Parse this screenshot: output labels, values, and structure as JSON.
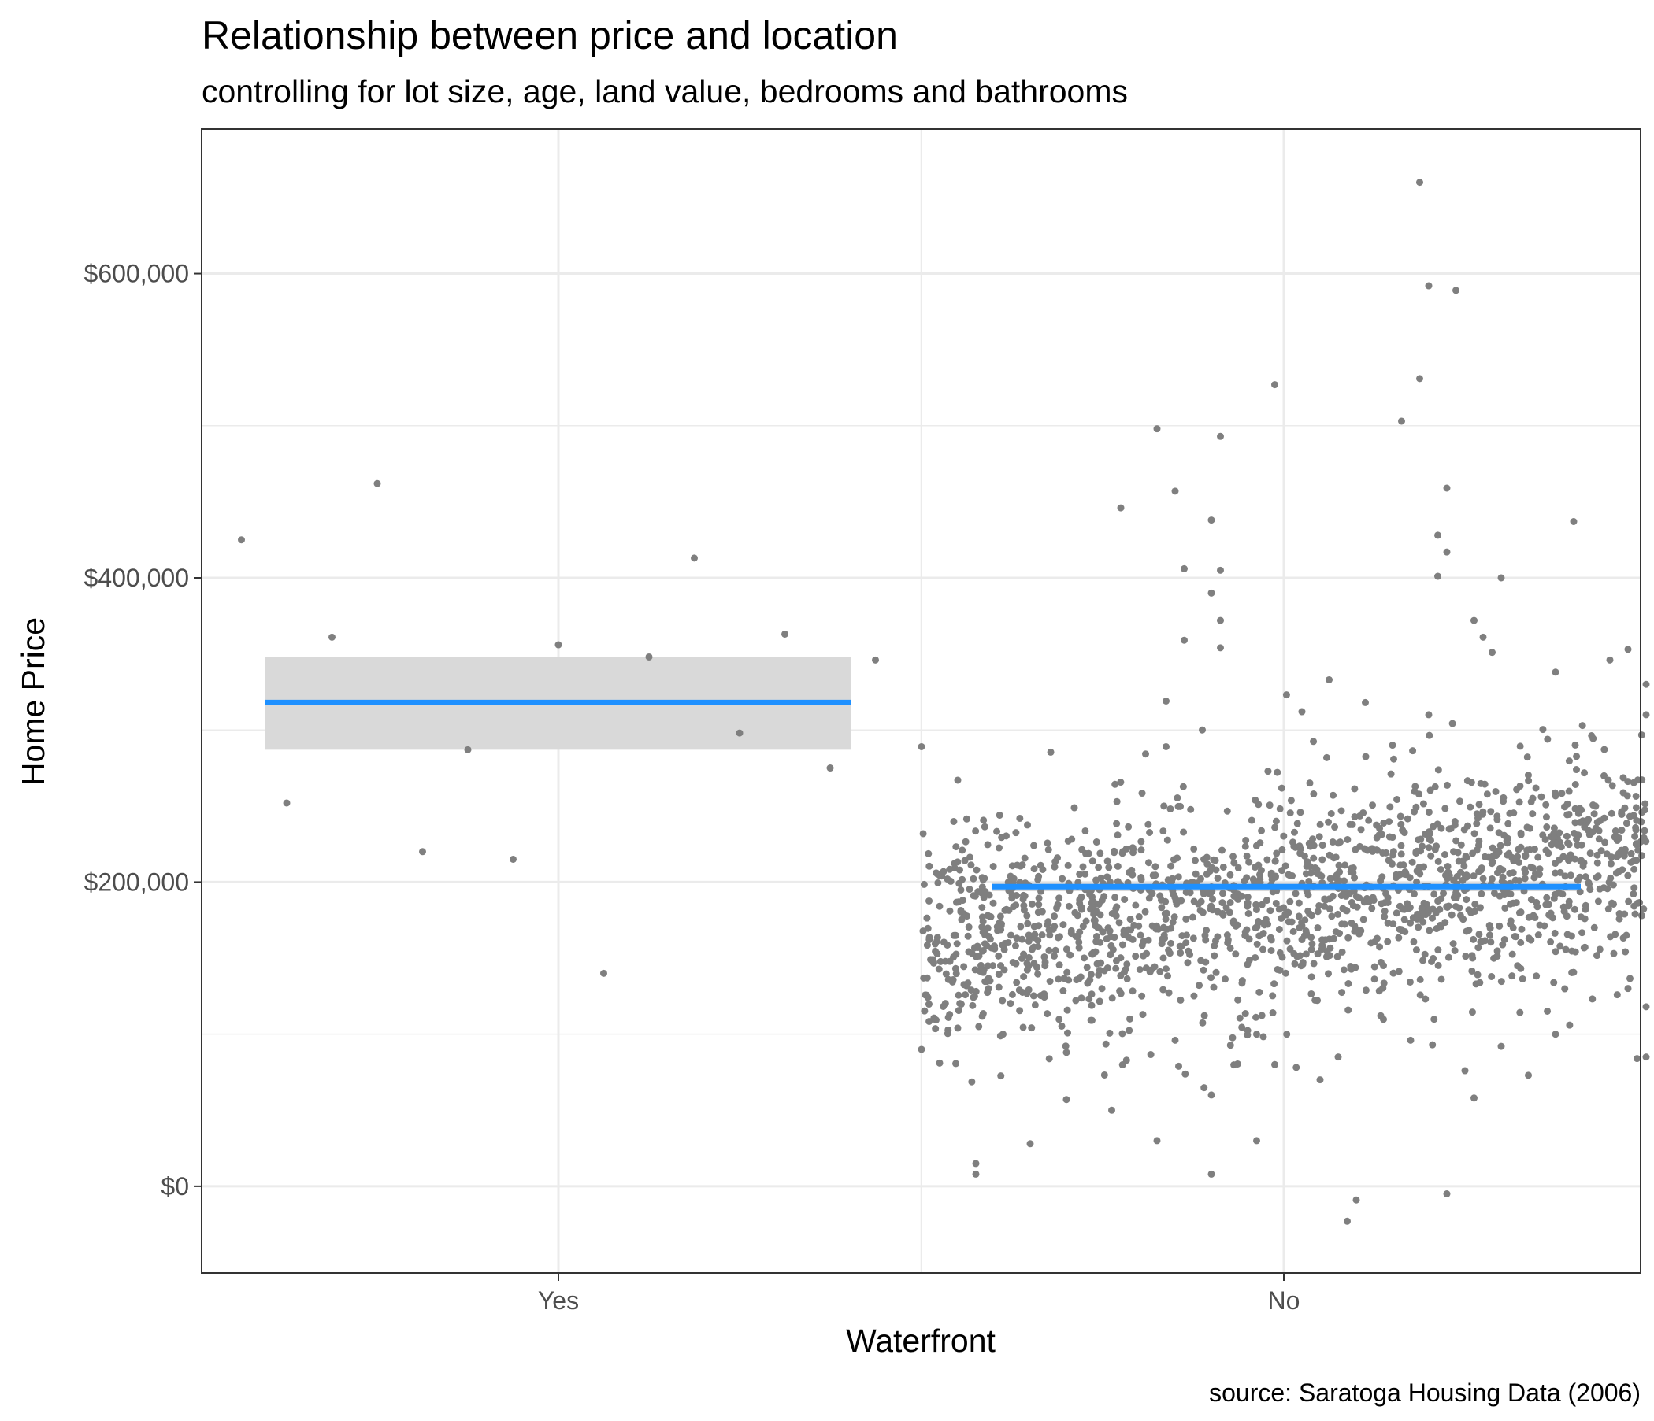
{
  "chart_data": {
    "type": "scatter",
    "title": "Relationship between price and location",
    "subtitle": "controlling for lot size, age, land value, bedrooms and bathrooms",
    "xlabel": "Waterfront",
    "ylabel": "Home Price",
    "caption": "source: Saratoga Housing Data (2006)",
    "categories": [
      "Yes",
      "No"
    ],
    "ylim": [
      -57000,
      695000
    ],
    "y_ticks": [
      0,
      200000,
      400000,
      600000
    ],
    "y_tick_labels": [
      "$0",
      "$200,000",
      "$400,000",
      "$600,000"
    ],
    "grid": true,
    "colors": {
      "points": "#7f7f7f",
      "fit_line": "#1e90ff",
      "ci_band": "#d9d9d9",
      "grid": "#ebebeb",
      "panel_border": "#333333"
    },
    "fits": [
      {
        "category": "Yes",
        "mean": 318000,
        "ci_low": 287000,
        "ci_high": 348000
      },
      {
        "category": "No",
        "mean": 197000,
        "ci_low": 194000,
        "ci_high": 200000
      }
    ],
    "series": [
      {
        "category": "Yes",
        "points": [
          {
            "x": -0.35,
            "y": 425000
          },
          {
            "x": -0.3,
            "y": 252000
          },
          {
            "x": -0.25,
            "y": 361000
          },
          {
            "x": -0.2,
            "y": 462000
          },
          {
            "x": -0.15,
            "y": 220000
          },
          {
            "x": -0.1,
            "y": 287000
          },
          {
            "x": -0.05,
            "y": 215000
          },
          {
            "x": 0.0,
            "y": 356000
          },
          {
            "x": 0.05,
            "y": 140000
          },
          {
            "x": 0.1,
            "y": 348000
          },
          {
            "x": 0.15,
            "y": 413000
          },
          {
            "x": 0.2,
            "y": 298000
          },
          {
            "x": 0.25,
            "y": 363000
          },
          {
            "x": 0.3,
            "y": 275000
          },
          {
            "x": 0.35,
            "y": 346000
          }
        ]
      },
      {
        "category": "No",
        "n_points": 1713,
        "x_jitter": [
          -0.4,
          0.4
        ],
        "trend": {
          "y_at_left": 165000,
          "y_at_center": 185000,
          "y_at_right": 215000
        },
        "points": [
          {
            "x": 0.15,
            "y": 660000
          },
          {
            "x": 0.16,
            "y": 592000
          },
          {
            "x": 0.19,
            "y": 589000
          },
          {
            "x": 0.15,
            "y": 531000
          },
          {
            "x": -0.01,
            "y": 527000
          },
          {
            "x": 0.13,
            "y": 503000
          },
          {
            "x": -0.14,
            "y": 498000
          },
          {
            "x": -0.07,
            "y": 493000
          },
          {
            "x": 0.18,
            "y": 459000
          },
          {
            "x": -0.12,
            "y": 457000
          },
          {
            "x": -0.18,
            "y": 446000
          },
          {
            "x": -0.08,
            "y": 438000
          },
          {
            "x": 0.32,
            "y": 437000
          },
          {
            "x": 0.17,
            "y": 428000
          },
          {
            "x": -0.11,
            "y": 406000
          },
          {
            "x": -0.07,
            "y": 405000
          },
          {
            "x": 0.17,
            "y": 401000
          },
          {
            "x": 0.24,
            "y": 400000
          },
          {
            "x": -0.08,
            "y": 390000
          },
          {
            "x": -0.07,
            "y": 372000
          },
          {
            "x": 0.21,
            "y": 372000
          },
          {
            "x": 0.18,
            "y": 417000
          },
          {
            "x": -0.11,
            "y": 359000
          },
          {
            "x": -0.07,
            "y": 354000
          },
          {
            "x": 0.22,
            "y": 361000
          },
          {
            "x": 0.23,
            "y": 351000
          },
          {
            "x": -0.4,
            "y": 289000
          },
          {
            "x": -0.36,
            "y": 267000
          },
          {
            "x": -0.4,
            "y": 90000
          },
          {
            "x": -0.38,
            "y": 81000
          },
          {
            "x": -0.34,
            "y": 15000
          },
          {
            "x": -0.34,
            "y": 8000
          },
          {
            "x": -0.28,
            "y": 28000
          },
          {
            "x": -0.24,
            "y": 57000
          },
          {
            "x": -0.24,
            "y": 88000
          },
          {
            "x": -0.19,
            "y": 50000
          },
          {
            "x": -0.14,
            "y": 30000
          },
          {
            "x": -0.08,
            "y": 60000
          },
          {
            "x": -0.08,
            "y": 8000
          },
          {
            "x": -0.03,
            "y": 30000
          },
          {
            "x": -0.01,
            "y": 80000
          },
          {
            "x": 0.04,
            "y": 70000
          },
          {
            "x": 0.06,
            "y": 85000
          },
          {
            "x": 0.07,
            "y": -23000
          },
          {
            "x": 0.08,
            "y": -9000
          },
          {
            "x": 0.18,
            "y": -5000
          },
          {
            "x": 0.21,
            "y": 58000
          },
          {
            "x": 0.27,
            "y": 73000
          },
          {
            "x": 0.39,
            "y": 84000
          },
          {
            "x": 0.4,
            "y": 85000
          },
          {
            "x": 0.4,
            "y": 118000
          },
          {
            "x": 0.38,
            "y": 130000
          },
          {
            "x": 0.4,
            "y": 310000
          },
          {
            "x": 0.4,
            "y": 330000
          },
          {
            "x": 0.38,
            "y": 353000
          },
          {
            "x": 0.36,
            "y": 346000
          },
          {
            "x": 0.3,
            "y": 338000
          },
          {
            "x": 0.05,
            "y": 333000
          },
          {
            "x": 0.09,
            "y": 318000
          },
          {
            "x": -0.09,
            "y": 300000
          },
          {
            "x": -0.13,
            "y": 319000
          },
          {
            "x": 0.16,
            "y": 310000
          },
          {
            "x": 0.02,
            "y": 312000
          },
          {
            "x": 0.12,
            "y": 290000
          },
          {
            "x": -0.13,
            "y": 289000
          },
          {
            "x": 0.3,
            "y": 100000
          },
          {
            "x": 0.2,
            "y": 76000
          },
          {
            "x": 0.24,
            "y": 92000
          },
          {
            "x": -0.03,
            "y": 100000
          },
          {
            "x": 0.14,
            "y": 96000
          },
          {
            "x": -0.36,
            "y": 104000
          },
          {
            "x": -0.31,
            "y": 100000
          },
          {
            "x": -0.17,
            "y": 110000
          },
          {
            "x": -0.12,
            "y": 96000
          }
        ]
      }
    ]
  }
}
